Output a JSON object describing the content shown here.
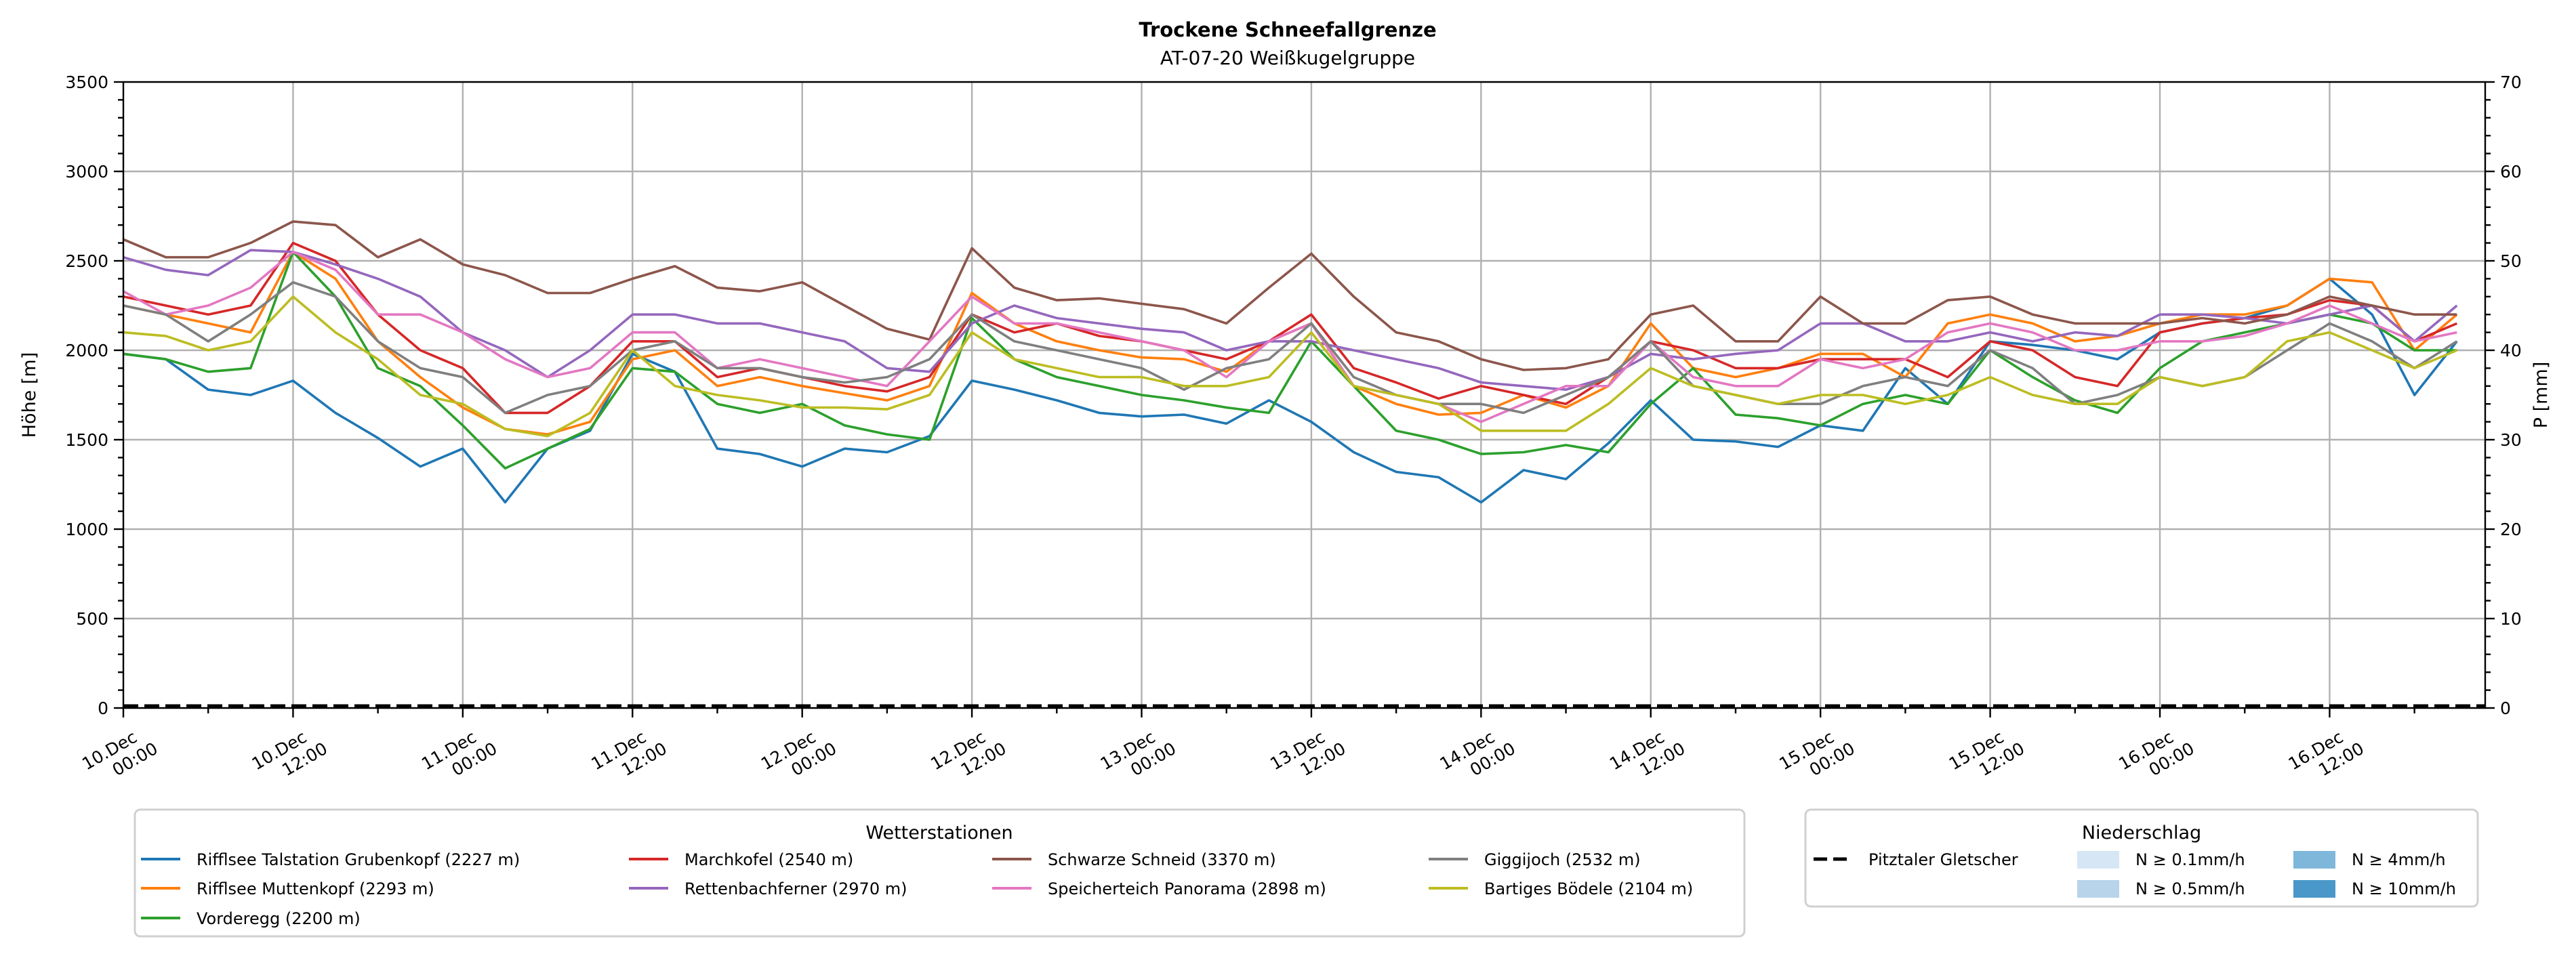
{
  "chart_data": {
    "type": "line",
    "title": "Trockene Schneefallgrenze",
    "subtitle": "AT-07-20 Weißkugelgruppe",
    "xlabel": "",
    "ylabel": "Höhe [m]",
    "y2label": "P [mm]",
    "ylim": [
      0,
      3500
    ],
    "y2lim": [
      0,
      70
    ],
    "yticks": [
      0,
      500,
      1000,
      1500,
      2000,
      2500,
      3000,
      3500
    ],
    "y2ticks": [
      0,
      10,
      20,
      30,
      40,
      50,
      60,
      70
    ],
    "grid": true,
    "x_unit": "hours since 10.Dec 00:00",
    "xlim": [
      0,
      167
    ],
    "x_step_hours": 3,
    "xticks": [
      {
        "hour": 0,
        "label": [
          "10.Dec",
          "00:00"
        ]
      },
      {
        "hour": 12,
        "label": [
          "10.Dec",
          "12:00"
        ]
      },
      {
        "hour": 24,
        "label": [
          "11.Dec",
          "00:00"
        ]
      },
      {
        "hour": 36,
        "label": [
          "11.Dec",
          "12:00"
        ]
      },
      {
        "hour": 48,
        "label": [
          "12.Dec",
          "00:00"
        ]
      },
      {
        "hour": 60,
        "label": [
          "12.Dec",
          "12:00"
        ]
      },
      {
        "hour": 72,
        "label": [
          "13.Dec",
          "00:00"
        ]
      },
      {
        "hour": 84,
        "label": [
          "13.Dec",
          "12:00"
        ]
      },
      {
        "hour": 96,
        "label": [
          "14.Dec",
          "00:00"
        ]
      },
      {
        "hour": 108,
        "label": [
          "14.Dec",
          "12:00"
        ]
      },
      {
        "hour": 120,
        "label": [
          "15.Dec",
          "00:00"
        ]
      },
      {
        "hour": 132,
        "label": [
          "15.Dec",
          "12:00"
        ]
      },
      {
        "hour": 144,
        "label": [
          "16.Dec",
          "00:00"
        ]
      },
      {
        "hour": 156,
        "label": [
          "16.Dec",
          "12:00"
        ]
      }
    ],
    "series": [
      {
        "name": "Rifflsee Talstation Grubenkopf (2227 m)",
        "color": "#1f77b4",
        "values": [
          1980,
          1950,
          1780,
          1750,
          1830,
          1650,
          1510,
          1350,
          1450,
          1150,
          1450,
          1550,
          1980,
          1880,
          1450,
          1420,
          1350,
          1450,
          1430,
          1520,
          1830,
          1780,
          1720,
          1650,
          1630,
          1640,
          1590,
          1720,
          1600,
          1430,
          1320,
          1290,
          1150,
          1330,
          1280,
          1480,
          1720,
          1500,
          1490,
          1460,
          1580,
          1550,
          1900,
          1700,
          2050,
          2030,
          2000,
          1950,
          2100,
          2150,
          2180,
          2250,
          2400,
          2200,
          1750,
          2050
        ]
      },
      {
        "name": "Rifflsee Muttenkopf (2293 m)",
        "color": "#ff7f0e",
        "values": [
          2250,
          2200,
          2150,
          2100,
          2550,
          2400,
          2050,
          1850,
          1680,
          1560,
          1530,
          1600,
          1950,
          2000,
          1800,
          1850,
          1800,
          1760,
          1720,
          1800,
          2320,
          2150,
          2050,
          2000,
          1960,
          1950,
          1880,
          2050,
          2150,
          1800,
          1700,
          1640,
          1650,
          1750,
          1680,
          1800,
          2150,
          1900,
          1850,
          1900,
          1980,
          1980,
          1850,
          2150,
          2200,
          2150,
          2050,
          2080,
          2150,
          2200,
          2200,
          2250,
          2400,
          2380,
          2000,
          2200
        ]
      },
      {
        "name": "Vorderegg (2200 m)",
        "color": "#2ca02c",
        "values": [
          1980,
          1950,
          1880,
          1900,
          2550,
          2300,
          1900,
          1800,
          1580,
          1340,
          1450,
          1560,
          1900,
          1880,
          1700,
          1650,
          1700,
          1580,
          1530,
          1500,
          2180,
          1950,
          1850,
          1800,
          1750,
          1720,
          1680,
          1650,
          2050,
          1800,
          1550,
          1500,
          1420,
          1430,
          1470,
          1430,
          1700,
          1900,
          1640,
          1620,
          1580,
          1700,
          1750,
          1700,
          2000,
          1850,
          1720,
          1650,
          1900,
          2050,
          2100,
          2150,
          2200,
          2150,
          2000,
          2000
        ]
      },
      {
        "name": "Marchkofel (2540 m)",
        "color": "#d62728",
        "values": [
          2300,
          2250,
          2200,
          2250,
          2600,
          2500,
          2200,
          2000,
          1900,
          1650,
          1650,
          1800,
          2050,
          2050,
          1850,
          1900,
          1850,
          1800,
          1770,
          1850,
          2200,
          2100,
          2150,
          2080,
          2050,
          2000,
          1950,
          2050,
          2200,
          1900,
          1820,
          1730,
          1800,
          1750,
          1700,
          1850,
          2050,
          2000,
          1900,
          1900,
          1950,
          1950,
          1950,
          1850,
          2050,
          2000,
          1850,
          1800,
          2100,
          2150,
          2180,
          2200,
          2280,
          2250,
          2050,
          2150
        ]
      },
      {
        "name": "Rettenbachferner (2970 m)",
        "color": "#9467bd",
        "values": [
          2520,
          2450,
          2420,
          2560,
          2550,
          2480,
          2400,
          2300,
          2100,
          2000,
          1850,
          2000,
          2200,
          2200,
          2150,
          2150,
          2100,
          2050,
          1900,
          1880,
          2150,
          2250,
          2180,
          2150,
          2120,
          2100,
          2000,
          2050,
          2050,
          2000,
          1950,
          1900,
          1820,
          1800,
          1780,
          1850,
          1980,
          1950,
          1980,
          2000,
          2150,
          2150,
          2050,
          2050,
          2100,
          2050,
          2100,
          2080,
          2200,
          2200,
          2180,
          2150,
          2200,
          2250,
          2050,
          2250
        ]
      },
      {
        "name": "Schwarze Schneid (3370 m)",
        "color": "#8c564b",
        "values": [
          2620,
          2520,
          2520,
          2600,
          2720,
          2700,
          2520,
          2620,
          2480,
          2420,
          2320,
          2320,
          2400,
          2470,
          2350,
          2330,
          2380,
          2250,
          2120,
          2060,
          2570,
          2350,
          2280,
          2290,
          2260,
          2230,
          2150,
          2350,
          2540,
          2300,
          2100,
          2050,
          1950,
          1890,
          1900,
          1950,
          2200,
          2250,
          2050,
          2050,
          2300,
          2150,
          2150,
          2280,
          2300,
          2200,
          2150,
          2150,
          2150,
          2180,
          2150,
          2200,
          2300,
          2250,
          2200,
          2200
        ]
      },
      {
        "name": "Speicherteich Panorama (2898 m)",
        "color": "#e377c2",
        "values": [
          2330,
          2200,
          2250,
          2350,
          2550,
          2450,
          2200,
          2200,
          2100,
          1950,
          1850,
          1900,
          2100,
          2100,
          1900,
          1950,
          1900,
          1850,
          1800,
          2050,
          2300,
          2150,
          2150,
          2100,
          2050,
          2000,
          1850,
          2050,
          2150,
          1800,
          1750,
          1700,
          1600,
          1700,
          1800,
          1800,
          2050,
          1850,
          1800,
          1800,
          1950,
          1900,
          1950,
          2100,
          2150,
          2100,
          2000,
          2000,
          2050,
          2050,
          2080,
          2150,
          2250,
          2150,
          2050,
          2100
        ]
      },
      {
        "name": "Giggijoch (2532 m)",
        "color": "#7f7f7f",
        "values": [
          2250,
          2200,
          2050,
          2200,
          2380,
          2300,
          2050,
          1900,
          1850,
          1650,
          1750,
          1800,
          2000,
          2050,
          1900,
          1900,
          1850,
          1820,
          1850,
          1950,
          2200,
          2050,
          2000,
          1950,
          1900,
          1780,
          1900,
          1950,
          2150,
          1850,
          1750,
          1700,
          1700,
          1650,
          1750,
          1850,
          2050,
          1800,
          1750,
          1700,
          1700,
          1800,
          1850,
          1800,
          2000,
          1900,
          1700,
          1750,
          1850,
          1800,
          1850,
          2000,
          2150,
          2050,
          1900,
          2050
        ]
      },
      {
        "name": "Bartiges Bödele (2104 m)",
        "color": "#bcbd22",
        "values": [
          2100,
          2080,
          2000,
          2050,
          2300,
          2100,
          1950,
          1750,
          1700,
          1560,
          1520,
          1650,
          2000,
          1800,
          1750,
          1720,
          1680,
          1680,
          1670,
          1750,
          2100,
          1950,
          1900,
          1850,
          1850,
          1800,
          1800,
          1850,
          2100,
          1800,
          1750,
          1700,
          1550,
          1550,
          1550,
          1700,
          1900,
          1800,
          1750,
          1700,
          1750,
          1750,
          1700,
          1750,
          1850,
          1750,
          1700,
          1700,
          1850,
          1800,
          1850,
          2050,
          2100,
          2000,
          1900,
          2000
        ]
      }
    ],
    "precipitation_series": [
      {
        "name": "Pitztaler Gletscher",
        "color": "#000000",
        "style": "dashed",
        "x": [
          0,
          167
        ],
        "values": [
          0,
          0
        ]
      }
    ],
    "legend_stations": {
      "title": "Wetterstationen",
      "placement": "bottom-left"
    },
    "legend_precip": {
      "title": "Niederschlag",
      "placement": "bottom-right",
      "classes": [
        {
          "label": "N ≥ 0.1mm/h",
          "color": "#d6e6f4"
        },
        {
          "label": "N ≥ 0.5mm/h",
          "color": "#b7d4ea"
        },
        {
          "label": "N ≥ 4mm/h",
          "color": "#7fb7da"
        },
        {
          "label": "N ≥ 10mm/h",
          "color": "#4a98c9"
        }
      ]
    }
  }
}
